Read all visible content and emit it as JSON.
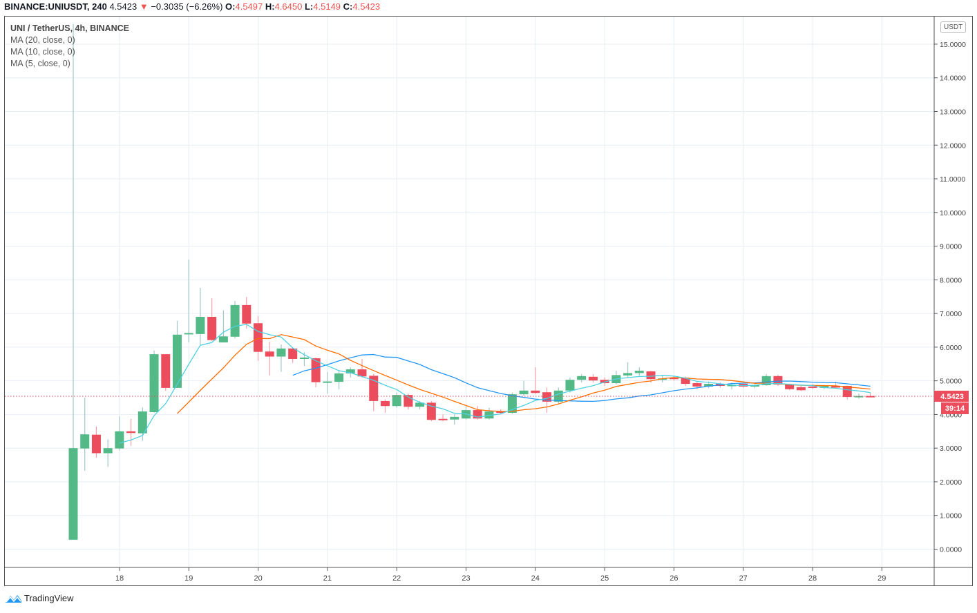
{
  "header": {
    "symbol": "BINANCE:UNIUSDT, 240",
    "last": "4.5423",
    "direction_icon": "triangle-down",
    "change": "−0.3035 (−6.26%)",
    "o_label": "O:",
    "o": "4.5497",
    "h_label": "H:",
    "h": "4.6450",
    "l_label": "L:",
    "l": "4.5149",
    "c_label": "C:",
    "c": "4.5423"
  },
  "legend": {
    "title": "UNI / TetherUS, 4h, BINANCE",
    "indicators": [
      "MA (20, close, 0)",
      "MA (10, close, 0)",
      "MA (5, close, 0)"
    ]
  },
  "currency_button": "USDT",
  "footer": {
    "brand": "TradingView"
  },
  "colors": {
    "up": "#53b987",
    "down": "#eb4d5c",
    "ma20": "#2196f3",
    "ma10": "#ff6d00",
    "ma5": "#4dd0e1",
    "grid": "#e6edf3",
    "last_price": "#eb4d5c"
  },
  "chart_data": {
    "type": "candlestick",
    "interval": "4h",
    "ylim": [
      -0.5,
      15.5
    ],
    "y_ticks": [
      "0.0000",
      "1.0000",
      "2.0000",
      "3.0000",
      "4.0000",
      "5.0000",
      "6.0000",
      "7.0000",
      "8.0000",
      "9.0000",
      "10.0000",
      "11.0000",
      "12.0000",
      "13.0000",
      "14.0000",
      "15.0000"
    ],
    "x_ticks": [
      "18",
      "19",
      "20",
      "21",
      "22",
      "23",
      "24",
      "25",
      "26",
      "27",
      "28",
      "29"
    ],
    "grid": true,
    "last_price_label": "4.5423",
    "countdown_label": "39:14",
    "moving_averages": [
      {
        "name": "MA (20, close, 0)",
        "period": 20
      },
      {
        "name": "MA (10, close, 0)",
        "period": 10
      },
      {
        "name": "MA (5, close, 0)",
        "period": 5
      }
    ],
    "ohlc": [
      [
        0.28,
        15.6,
        0.28,
        3.0
      ],
      [
        2.99,
        4.5,
        2.33,
        3.41
      ],
      [
        3.4,
        3.64,
        2.72,
        2.85
      ],
      [
        2.85,
        3.26,
        2.44,
        3.0
      ],
      [
        2.99,
        3.95,
        2.93,
        3.5
      ],
      [
        3.5,
        3.87,
        3.07,
        3.45
      ],
      [
        3.44,
        4.21,
        3.22,
        4.09
      ],
      [
        4.07,
        5.9,
        4.05,
        5.79
      ],
      [
        5.79,
        5.79,
        4.7,
        4.79
      ],
      [
        4.79,
        6.78,
        4.79,
        6.37
      ],
      [
        6.39,
        8.6,
        6.14,
        6.42
      ],
      [
        6.39,
        7.76,
        6.06,
        6.9
      ],
      [
        6.9,
        7.45,
        6.19,
        6.21
      ],
      [
        6.14,
        7.1,
        6.14,
        6.32
      ],
      [
        6.31,
        7.37,
        6.26,
        7.25
      ],
      [
        7.25,
        7.49,
        6.55,
        6.7
      ],
      [
        6.71,
        6.92,
        5.59,
        5.86
      ],
      [
        5.87,
        6.16,
        5.16,
        5.72
      ],
      [
        5.72,
        6.08,
        5.27,
        5.96
      ],
      [
        5.96,
        5.99,
        5.53,
        5.65
      ],
      [
        5.65,
        5.85,
        5.44,
        5.69
      ],
      [
        5.67,
        5.69,
        4.81,
        4.96
      ],
      [
        4.96,
        5.26,
        4.62,
        4.98
      ],
      [
        4.97,
        5.3,
        4.75,
        5.22
      ],
      [
        5.22,
        5.4,
        5.1,
        5.34
      ],
      [
        5.34,
        5.65,
        5.1,
        5.13
      ],
      [
        5.15,
        5.2,
        4.1,
        4.4
      ],
      [
        4.4,
        4.45,
        4.05,
        4.25
      ],
      [
        4.25,
        4.65,
        4.2,
        4.58
      ],
      [
        4.58,
        4.62,
        4.15,
        4.23
      ],
      [
        4.23,
        4.4,
        4.15,
        4.35
      ],
      [
        4.35,
        4.4,
        3.8,
        3.84
      ],
      [
        3.87,
        4.0,
        3.8,
        3.83
      ],
      [
        3.85,
        4.0,
        3.7,
        3.93
      ],
      [
        3.88,
        4.25,
        3.85,
        4.13
      ],
      [
        4.13,
        4.25,
        3.85,
        3.88
      ],
      [
        3.88,
        4.2,
        3.85,
        4.09
      ],
      [
        4.09,
        4.15,
        4.0,
        4.05
      ],
      [
        4.05,
        4.65,
        4.02,
        4.6
      ],
      [
        4.6,
        5.0,
        4.55,
        4.71
      ],
      [
        4.71,
        5.4,
        4.6,
        4.64
      ],
      [
        4.66,
        4.8,
        4.05,
        4.38
      ],
      [
        4.38,
        4.8,
        4.3,
        4.71
      ],
      [
        4.71,
        5.1,
        4.65,
        5.03
      ],
      [
        5.03,
        5.2,
        4.95,
        5.14
      ],
      [
        5.12,
        5.2,
        4.95,
        5.01
      ],
      [
        5.03,
        5.1,
        4.85,
        4.93
      ],
      [
        4.93,
        5.3,
        4.9,
        5.17
      ],
      [
        5.16,
        5.55,
        5.1,
        5.23
      ],
      [
        5.23,
        5.4,
        5.15,
        5.3
      ],
      [
        5.28,
        5.3,
        4.95,
        5.05
      ],
      [
        5.03,
        5.15,
        4.95,
        5.07
      ],
      [
        5.09,
        5.15,
        5.0,
        5.05
      ],
      [
        5.09,
        5.12,
        4.85,
        4.91
      ],
      [
        4.93,
        4.98,
        4.75,
        4.83
      ],
      [
        4.83,
        4.98,
        4.78,
        4.91
      ],
      [
        4.91,
        4.95,
        4.8,
        4.85
      ],
      [
        4.86,
        4.95,
        4.75,
        4.88
      ],
      [
        4.91,
        4.95,
        4.8,
        4.83
      ],
      [
        4.83,
        4.9,
        4.78,
        4.87
      ],
      [
        4.87,
        5.2,
        4.85,
        5.14
      ],
      [
        5.14,
        5.18,
        4.85,
        4.89
      ],
      [
        4.89,
        4.92,
        4.72,
        4.75
      ],
      [
        4.81,
        4.85,
        4.7,
        4.72
      ],
      [
        4.83,
        4.9,
        4.75,
        4.79
      ],
      [
        4.79,
        4.88,
        4.75,
        4.84
      ],
      [
        4.84,
        4.97,
        4.78,
        4.8
      ],
      [
        4.85,
        4.86,
        4.45,
        4.52
      ],
      [
        4.52,
        4.62,
        4.47,
        4.55
      ],
      [
        4.5497,
        4.645,
        4.5149,
        4.5423
      ]
    ]
  }
}
